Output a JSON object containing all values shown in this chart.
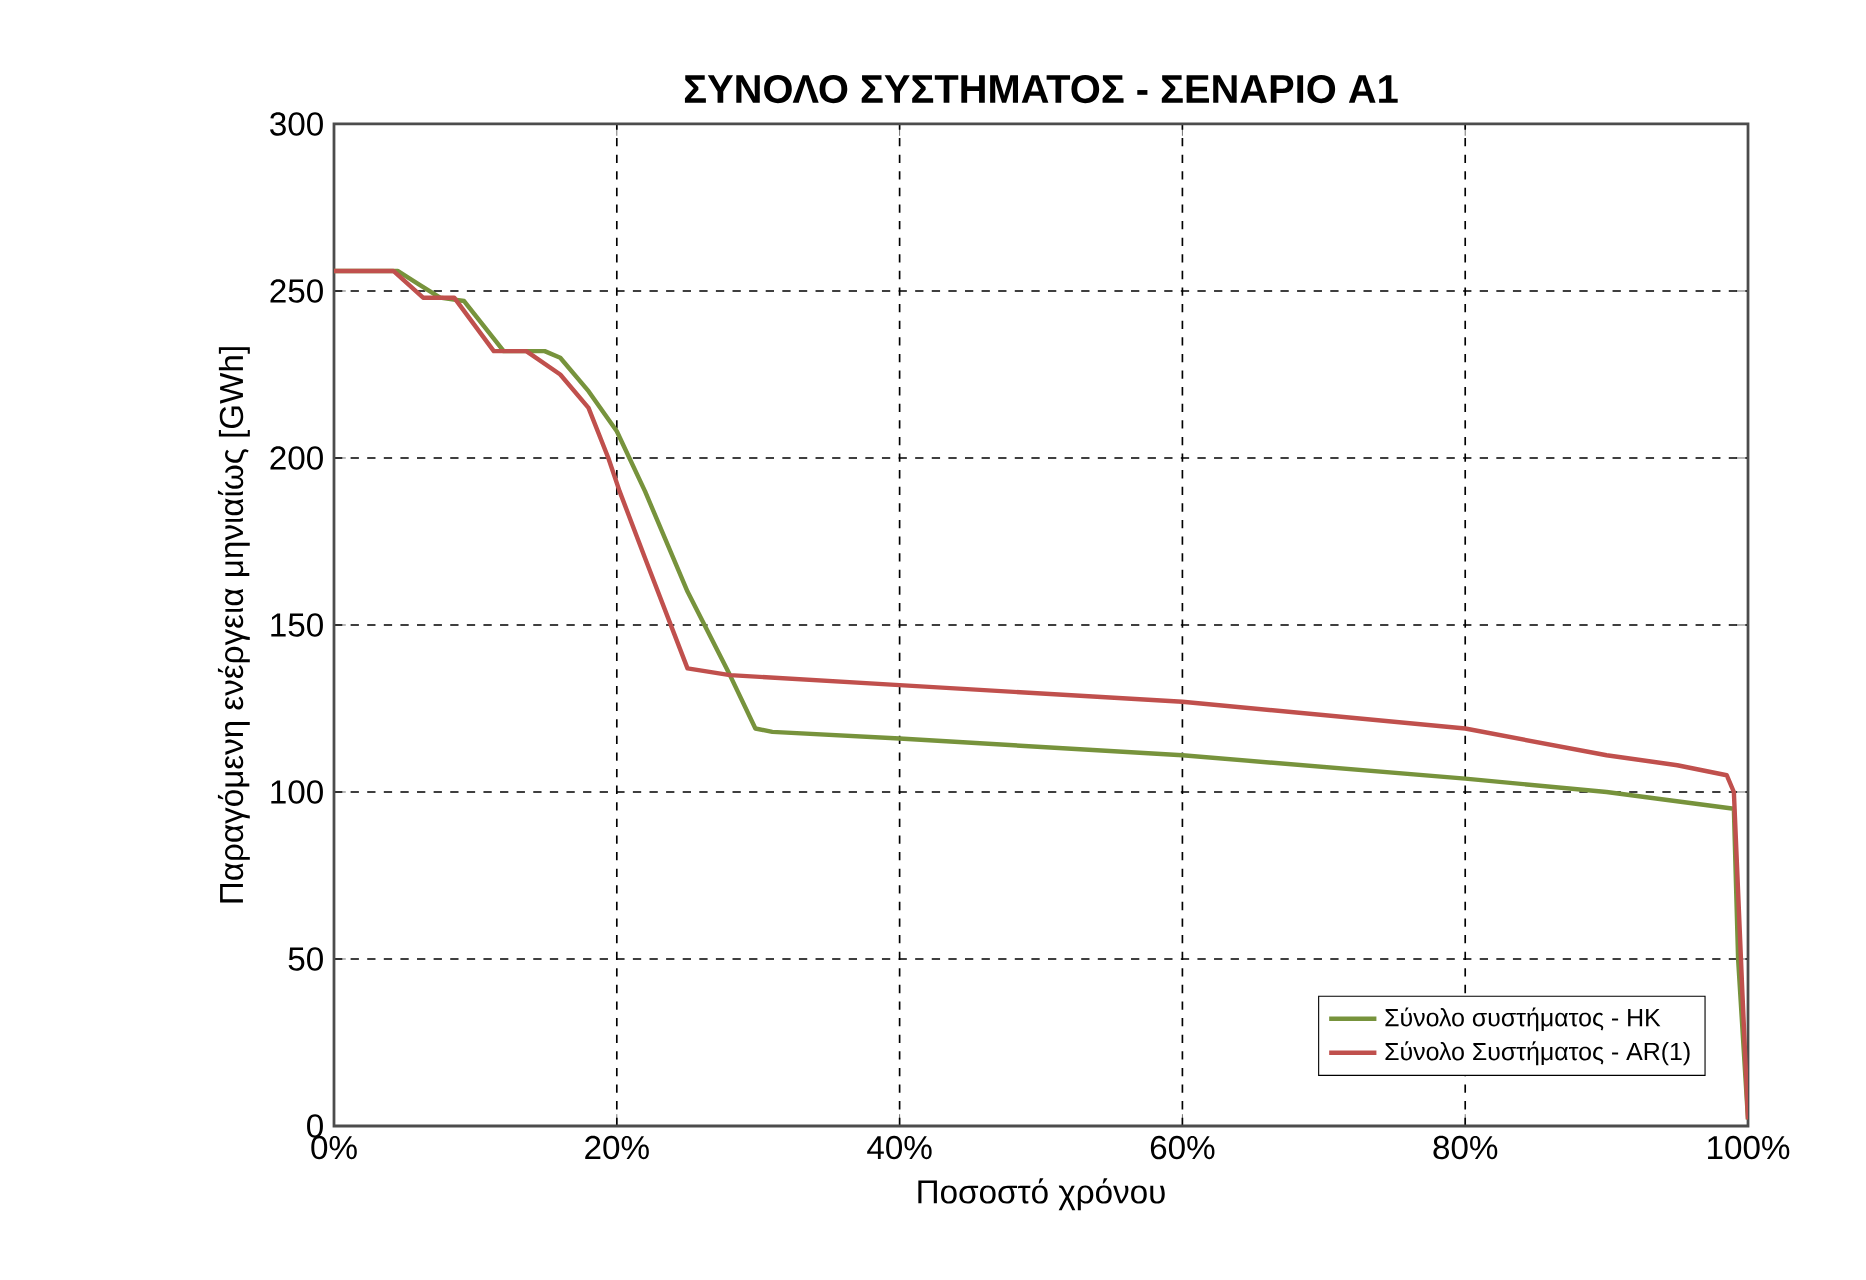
{
  "chart_data": {
    "type": "line",
    "title": "ΣΥΝΟΛΟ ΣΥΣΤΗΜΑΤΟΣ - ΣΕΝΑΡΙΟ Α1",
    "xlabel": "Ποσοστό χρόνου",
    "ylabel": "Παραγόμενη ενέργεια μηνιαίως [GWh]",
    "xlim": [
      0,
      100
    ],
    "ylim": [
      0,
      300
    ],
    "xticks": [
      {
        "value": 0,
        "label": "0%"
      },
      {
        "value": 20,
        "label": "20%"
      },
      {
        "value": 40,
        "label": "40%"
      },
      {
        "value": 60,
        "label": "60%"
      },
      {
        "value": 80,
        "label": "80%"
      },
      {
        "value": 100,
        "label": "100%"
      }
    ],
    "yticks": [
      0,
      50,
      100,
      150,
      200,
      250,
      300
    ],
    "grid": true,
    "legend": "bottom right",
    "marker": "none",
    "line_style": "solid",
    "series": [
      {
        "name": "Σύνολο συστήματος - HK",
        "color": "#77933c",
        "x": [
          0,
          4.5,
          6,
          7.5,
          9.2,
          12,
          14.9,
          16,
          18,
          20,
          22,
          25,
          28,
          29.8,
          31,
          40,
          60,
          80,
          90,
          99,
          99.3,
          100
        ],
        "values": [
          256,
          256,
          252,
          248,
          247,
          232,
          232,
          230,
          220,
          208,
          190,
          160,
          135,
          119,
          118,
          116,
          111,
          104,
          100,
          95,
          50,
          2
        ]
      },
      {
        "name": "Σύνολο Συστήματος - AR(1)",
        "color": "#c0504d",
        "x": [
          0,
          4.2,
          6.3,
          8.5,
          11.3,
          13.6,
          16,
          18,
          19.4,
          20.2,
          22,
          25,
          28,
          40,
          60,
          80,
          90,
          95,
          98.5,
          99,
          99.6,
          100
        ],
        "values": [
          256,
          256,
          248,
          248,
          232,
          232,
          225,
          215,
          200,
          190,
          170,
          137,
          135,
          132,
          127,
          119,
          111,
          108,
          105,
          100,
          40,
          2
        ]
      }
    ]
  }
}
